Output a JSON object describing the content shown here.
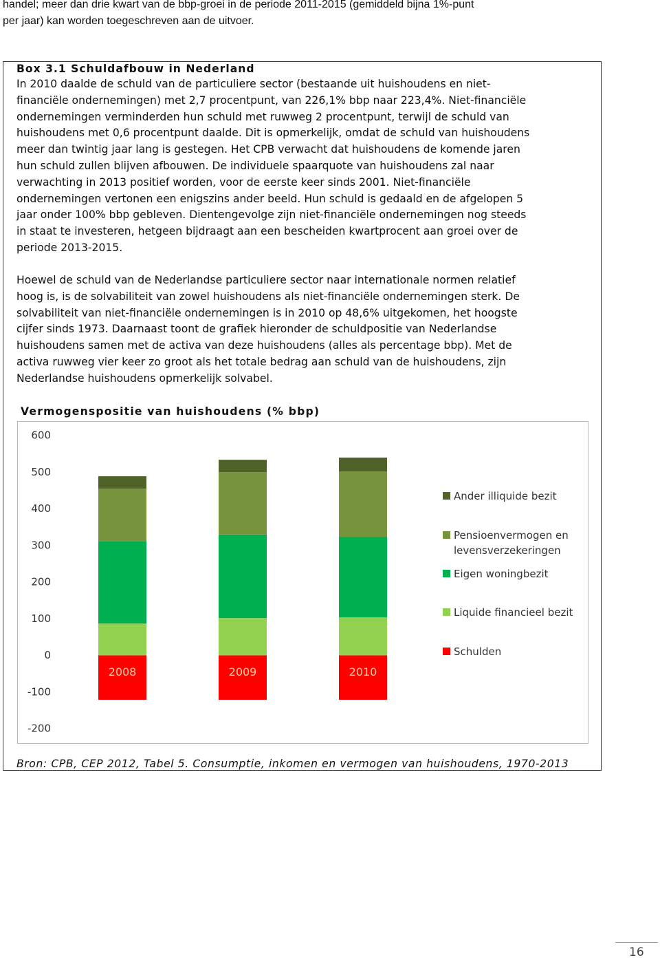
{
  "intro": {
    "lines": [
      "handel; meer dan drie kwart van de bbp-groei in de periode 2011-2015 (gemiddeld bijna 1%-punt",
      "per jaar) kan worden toegeschreven aan de uitvoer."
    ]
  },
  "box": {
    "title": "Box 3.1 Schuldafbouw in Nederland",
    "paragraphs": [
      {
        "lines": [
          "In 2010 daalde de schuld van de particuliere sector (bestaande uit huishoudens en niet-",
          "financiële ondernemingen) met 2,7 procentpunt, van 226,1% bbp naar 223,4%. Niet-financiële",
          "ondernemingen verminderden hun schuld met ruwweg 2 procentpunt, terwijl de schuld van",
          "huishoudens met 0,6 procentpunt daalde. Dit is opmerkelijk, omdat de schuld van huishoudens",
          "meer dan twintig jaar lang is gestegen. Het CPB verwacht dat huishoudens de komende jaren",
          "hun schuld zullen blijven afbouwen. De individuele spaarquote van huishoudens zal naar",
          "verwachting in 2013 positief worden, voor de eerste keer sinds 2001. Niet-financiële",
          "ondernemingen vertonen een enigszins ander beeld. Hun schuld is gedaald en de afgelopen 5",
          "jaar onder 100% bbp gebleven. Dientengevolge zijn niet-financiële ondernemingen nog steeds",
          "in staat te investeren, hetgeen bijdraagt aan een bescheiden kwartprocent aan groei over de",
          "periode 2013-2015."
        ]
      },
      {
        "lines": [
          "Hoewel de schuld van de Nederlandse particuliere sector naar internationale normen relatief",
          "hoog is, is de solvabiliteit van zowel huishoudens als niet-financiële ondernemingen sterk. De",
          "solvabiliteit van niet-financiële ondernemingen is in 2010 op 48,6% uitgekomen, het hoogste",
          "cijfer sinds 1973. Daarnaast toont de grafiek hieronder de schuldpositie van Nederlandse",
          "huishoudens samen met de activa van deze huishoudens (alles als percentage bbp). Met de",
          "activa ruwweg vier keer zo groot als het totale bedrag aan schuld van de huishoudens, zijn",
          "Nederlandse huishoudens opmerkelijk solvabel."
        ]
      }
    ],
    "source": "Bron: CPB, CEP 2012, Tabel 5. Consumptie, inkomen en vermogen van huishoudens, 1970-2013"
  },
  "chart_data": {
    "type": "stacked-bar",
    "title": "Vermogenspositie van huishoudens (% bbp)",
    "categories": [
      "2008",
      "2009",
      "2010"
    ],
    "series": [
      {
        "name": "Schulden",
        "color": "#ff0000",
        "values": [
          -121,
          -121,
          -121
        ]
      },
      {
        "name": "Liquide financieel bezit",
        "color": "#92d050",
        "values": [
          87,
          102,
          104
        ]
      },
      {
        "name": "Eigen woningbezit",
        "color": "#00b050",
        "values": [
          225,
          228,
          219
        ]
      },
      {
        "name": "Pensioenvermogen en levensverzekeringen",
        "color": "#77933c",
        "values": [
          143,
          170,
          179
        ]
      },
      {
        "name": "Ander illiquide bezit",
        "color": "#4f6228",
        "values": [
          34,
          34,
          38
        ]
      }
    ],
    "ylim": [
      -200,
      600
    ],
    "yticks": [
      -200,
      -100,
      0,
      100,
      200,
      300,
      400,
      500,
      600
    ],
    "grid": false
  },
  "page_number": "16"
}
